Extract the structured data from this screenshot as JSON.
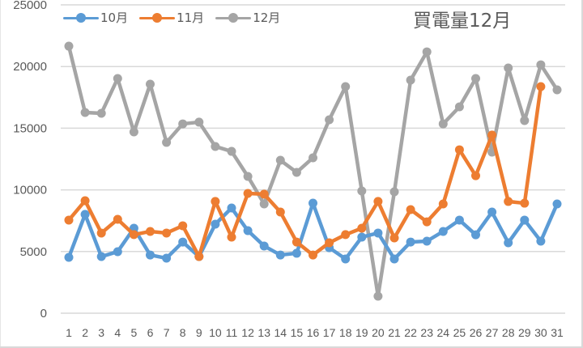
{
  "chart_data": {
    "type": "line",
    "title": "買電量12月",
    "xlabel": "",
    "ylabel": "",
    "ylim": [
      0,
      25000
    ],
    "yticks": [
      0,
      5000,
      10000,
      15000,
      20000,
      25000
    ],
    "grid": true,
    "legend_position": "top-left",
    "categories": [
      "1",
      "2",
      "3",
      "4",
      "5",
      "6",
      "7",
      "8",
      "9",
      "10",
      "11",
      "12",
      "13",
      "14",
      "15",
      "16",
      "17",
      "18",
      "19",
      "20",
      "21",
      "22",
      "23",
      "24",
      "25",
      "26",
      "27",
      "28",
      "29",
      "30",
      "31"
    ],
    "series": [
      {
        "name": "10月",
        "color": "#5b9bd5",
        "values": [
          4530,
          8010,
          4590,
          4990,
          6890,
          4720,
          4460,
          5770,
          4590,
          7220,
          8530,
          6690,
          5450,
          4720,
          4860,
          8920,
          5310,
          4400,
          6170,
          6500,
          4400,
          5770,
          5840,
          6630,
          7550,
          6360,
          8200,
          5710,
          7550,
          5840,
          8860
        ]
      },
      {
        "name": "11月",
        "color": "#ed7d31",
        "values": [
          7550,
          9120,
          6500,
          7610,
          6370,
          6630,
          6500,
          7090,
          4590,
          9060,
          6170,
          9710,
          9650,
          8200,
          5770,
          4720,
          5710,
          6370,
          6890,
          9060,
          6100,
          8400,
          7410,
          8860,
          13250,
          11150,
          14440,
          9060,
          8920,
          18370,
          null
        ]
      },
      {
        "name": "12月",
        "color": "#a5a5a5",
        "values": [
          21650,
          16270,
          16210,
          19030,
          14700,
          18570,
          13850,
          15350,
          15490,
          13520,
          13120,
          11090,
          8860,
          12400,
          11420,
          12600,
          15680,
          18370,
          9910,
          1380,
          9840,
          18900,
          21190,
          15350,
          16730,
          19030,
          13060,
          19880,
          15620,
          20140,
          18110
        ]
      }
    ]
  },
  "axis": {
    "y_labels": [
      "0",
      "5000",
      "10000",
      "15000",
      "20000",
      "25000"
    ],
    "x_labels": [
      "1",
      "2",
      "3",
      "4",
      "5",
      "6",
      "7",
      "8",
      "9",
      "10",
      "11",
      "12",
      "13",
      "14",
      "15",
      "16",
      "17",
      "18",
      "19",
      "20",
      "21",
      "22",
      "23",
      "24",
      "25",
      "26",
      "27",
      "28",
      "29",
      "30",
      "31"
    ]
  },
  "legend": {
    "items": [
      {
        "label": "10月",
        "color": "#5b9bd5"
      },
      {
        "label": "11月",
        "color": "#ed7d31"
      },
      {
        "label": "12月",
        "color": "#a5a5a5"
      }
    ]
  },
  "colors": {
    "gridline": "#d9d9d9",
    "axis_text": "#595959"
  }
}
